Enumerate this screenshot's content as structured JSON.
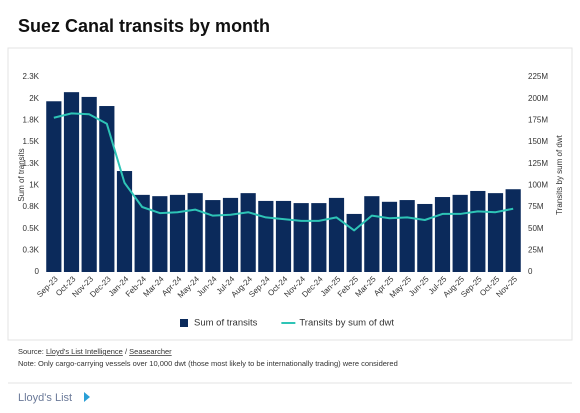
{
  "chart_data": {
    "type": "bar_line",
    "title": "Suez Canal transits by month",
    "y_label": "Sum of transits",
    "y2_label": "Transits by sum of dwt",
    "categories": [
      "Sep-23",
      "Oct-23",
      "Nov-23",
      "Dec-23",
      "Jan-24",
      "Feb-24",
      "Mar-24",
      "Apr-24",
      "May-24",
      "Jun-24",
      "Jul-24",
      "Aug-24",
      "Sep-24",
      "Oct-24",
      "Nov-24",
      "Dec-24",
      "Jan-25",
      "Feb-25",
      "Mar-25",
      "Apr-25",
      "May-25",
      "Jun-25",
      "Jul-25",
      "Aug-25",
      "Sep-25",
      "Oct-25",
      "Nov-25"
    ],
    "series": [
      {
        "name": "Sum of transits",
        "color": "#0b2a5b",
        "kind": "bar",
        "values": [
          1970,
          2075,
          2020,
          1915,
          1165,
          890,
          875,
          890,
          910,
          830,
          855,
          910,
          820,
          820,
          795,
          795,
          855,
          670,
          875,
          810,
          830,
          785,
          865,
          890,
          935,
          910,
          955
        ]
      },
      {
        "name": "Transits by sum of dwt",
        "color": "#2ec4b6",
        "kind": "line",
        "axis": "y2",
        "values": [
          178000000,
          183000000,
          182000000,
          171000000,
          103000000,
          75000000,
          68000000,
          69000000,
          72000000,
          65000000,
          66000000,
          69000000,
          63000000,
          61000000,
          59000000,
          59000000,
          63000000,
          48000000,
          65000000,
          62000000,
          63000000,
          60000000,
          67000000,
          67000000,
          70000000,
          69000000,
          73000000
        ]
      }
    ],
    "ylim": [
      0,
      2250
    ],
    "yticks": [
      0,
      {
        "value": 250,
        "label": "0.3K"
      },
      {
        "value": 500,
        "label": "0.5K"
      },
      {
        "value": 750,
        "label": "0.8K"
      },
      {
        "value": 1000,
        "label": "1K"
      },
      {
        "value": 1250,
        "label": "1.3K"
      },
      {
        "value": 1500,
        "label": "1.5K"
      },
      {
        "value": 1750,
        "label": "1.8K"
      },
      {
        "value": 2000,
        "label": "2K"
      },
      {
        "value": 2250,
        "label": "2.3K"
      }
    ],
    "y2lim": [
      0,
      225000000
    ],
    "y2ticks": [
      0,
      {
        "value": 25000000,
        "label": "25M"
      },
      {
        "value": 50000000,
        "label": "50M"
      },
      {
        "value": 75000000,
        "label": "75M"
      },
      {
        "value": 100000000,
        "label": "100M"
      },
      {
        "value": 125000000,
        "label": "125M"
      },
      {
        "value": 150000000,
        "label": "150M"
      },
      {
        "value": 175000000,
        "label": "175M"
      },
      {
        "value": 200000000,
        "label": "200M"
      },
      {
        "value": 225000000,
        "label": "225M"
      }
    ],
    "grid": false,
    "legend": "bottom"
  },
  "footer": {
    "source_label": "Source:",
    "source_links": [
      "Lloyd's List Intelligence",
      "Seasearcher"
    ],
    "separator": "/",
    "note": "Note: Only cargo-carrying vessels over 10,000 dwt (those most likely to be internationally trading) were considered",
    "brand": "Lloyd's List"
  }
}
